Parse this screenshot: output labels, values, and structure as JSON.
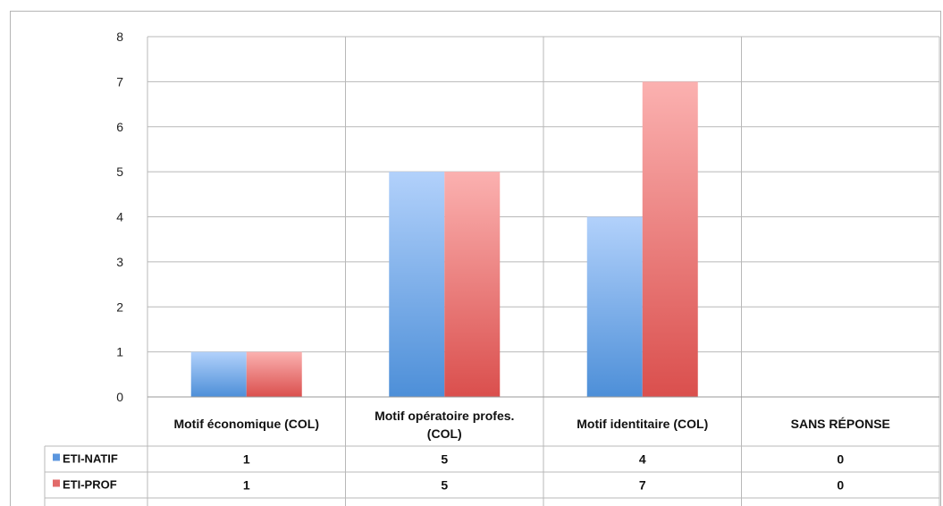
{
  "chart_data": {
    "type": "bar",
    "categories": [
      "Motif économique (COL)",
      "Motif opératoire profes. (COL)",
      "Motif identitaire (COL)",
      "SANS RÉPONSE"
    ],
    "category_lines": [
      [
        "Motif économique (COL)"
      ],
      [
        "Motif opératoire profes.",
        "(COL)"
      ],
      [
        "Motif identitaire (COL)"
      ],
      [
        "SANS RÉPONSE"
      ]
    ],
    "series": [
      {
        "name": "ETI-NATIF",
        "values": [
          1,
          5,
          4,
          0
        ],
        "color": "#7fb0ea"
      },
      {
        "name": "ETI-PROF",
        "values": [
          1,
          5,
          7,
          0
        ],
        "color": "#ea6f6f"
      }
    ],
    "yticks": [
      "0",
      "1",
      "2",
      "3",
      "4",
      "5",
      "6",
      "7",
      "8"
    ],
    "ylim": [
      0,
      8
    ],
    "grid": true,
    "legend": "data table"
  }
}
